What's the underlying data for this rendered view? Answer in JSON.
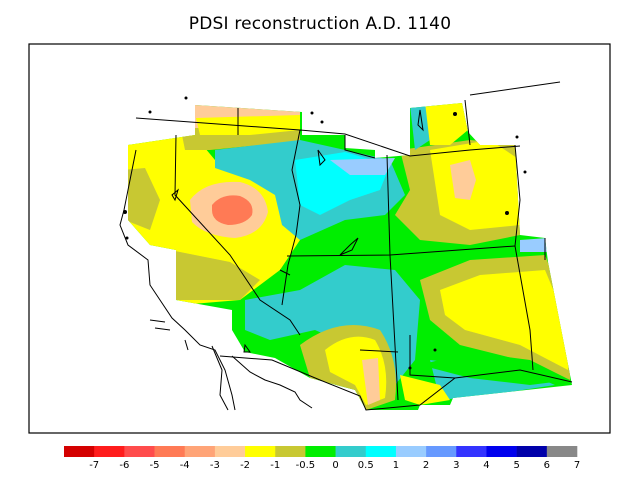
{
  "title": "PDSI reconstruction A.D. 1140",
  "colorbar": {
    "colors": [
      "#d40000",
      "#ff1c1c",
      "#ff4c4c",
      "#ff7a55",
      "#ffa477",
      "#ffcc99",
      "#ffff00",
      "#c8c832",
      "#00ee00",
      "#33cccc",
      "#00ffff",
      "#99ccff",
      "#6699ff",
      "#3333ff",
      "#0000ee",
      "#0000aa",
      "#888888"
    ],
    "labels": [
      "-7",
      "-6",
      "-5",
      "-4",
      "-3",
      "-2",
      "-1",
      "-0.5",
      "0",
      "0.5",
      "1",
      "2",
      "3",
      "4",
      "5",
      "6",
      "7"
    ]
  },
  "chart_data": {
    "type": "heatmap",
    "title": "PDSI reconstruction A.D. 1140",
    "legend": "bottom",
    "levels": [
      -7,
      -6,
      -5,
      -4,
      -3,
      -2,
      -1,
      -0.5,
      0,
      0.5,
      1,
      2,
      3,
      4,
      5,
      6,
      7
    ]
  }
}
